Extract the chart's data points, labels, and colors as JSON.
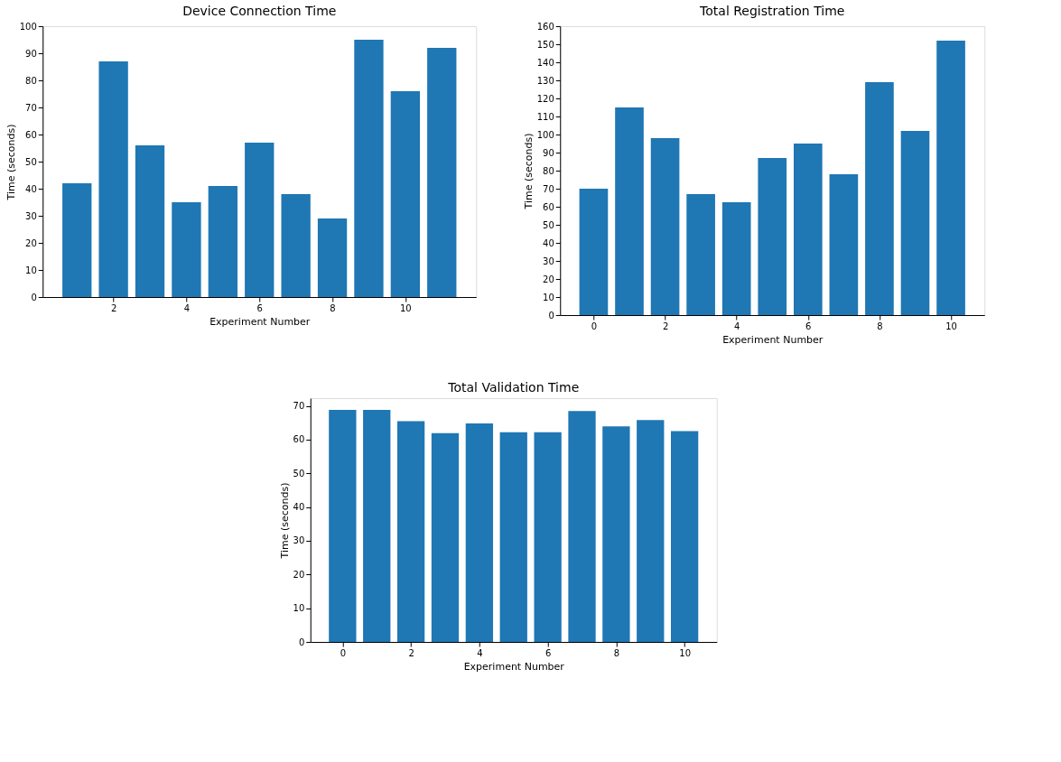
{
  "chart_data": [
    {
      "type": "bar",
      "title": "Device Connection Time",
      "xlabel": "Experiment Number",
      "ylabel": "Time (seconds)",
      "x": [
        1,
        2,
        3,
        4,
        5,
        6,
        7,
        8,
        9,
        10,
        11
      ],
      "values": [
        42,
        87,
        56,
        35,
        41,
        57,
        38,
        29,
        95,
        76,
        92
      ],
      "color": "#1f77b4",
      "xlim": [
        0.06,
        11.94
      ],
      "xticks": [
        2,
        4,
        6,
        8,
        10
      ],
      "ylim": [
        0,
        100
      ],
      "yticks": [
        0,
        10,
        20,
        30,
        40,
        50,
        60,
        70,
        80,
        90,
        100
      ],
      "grid": false
    },
    {
      "type": "bar",
      "title": "Total Registration Time",
      "xlabel": "Experiment Number",
      "ylabel": "Time (seconds)",
      "x": [
        0,
        1,
        2,
        3,
        4,
        5,
        6,
        7,
        8,
        9,
        10
      ],
      "values": [
        70,
        115,
        98,
        67,
        62.5,
        87,
        95,
        78,
        129,
        102,
        152
      ],
      "color": "#1f77b4",
      "xlim": [
        -0.94,
        10.94
      ],
      "xticks": [
        0,
        2,
        4,
        6,
        8,
        10
      ],
      "ylim": [
        0,
        160
      ],
      "yticks": [
        0,
        10,
        20,
        30,
        40,
        50,
        60,
        70,
        80,
        90,
        100,
        110,
        120,
        130,
        140,
        150,
        160
      ],
      "grid": false
    },
    {
      "type": "bar",
      "title": "Total Validation Time",
      "xlabel": "Experiment Number",
      "ylabel": "Time (seconds)",
      "x": [
        0,
        1,
        2,
        3,
        4,
        5,
        6,
        7,
        8,
        9,
        10
      ],
      "values": [
        68.8,
        68.8,
        65.5,
        61.9,
        64.8,
        62.2,
        62.2,
        68.5,
        63.9,
        65.8,
        62.5
      ],
      "color": "#1f77b4",
      "xlim": [
        -0.94,
        10.94
      ],
      "xticks": [
        0,
        2,
        4,
        6,
        8,
        10
      ],
      "ylim": [
        0,
        72.3
      ],
      "yticks": [
        0,
        10,
        20,
        30,
        40,
        50,
        60,
        70
      ],
      "grid": false
    }
  ]
}
